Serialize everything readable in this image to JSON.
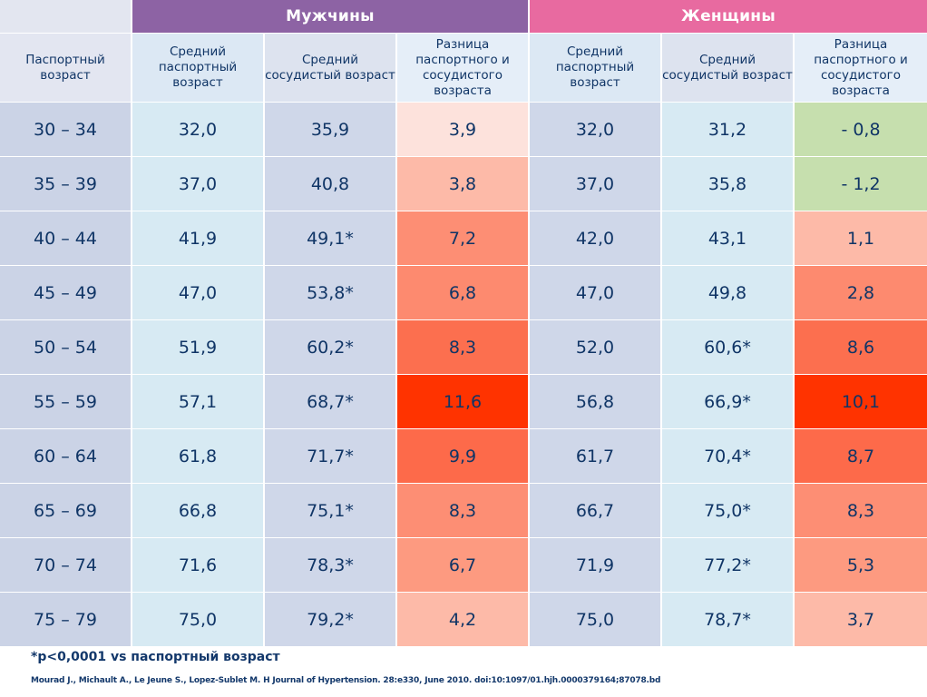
{
  "chart_data": {
    "type": "table",
    "groups": [
      "Мужчины",
      "Женщины"
    ],
    "headers": [
      "Паспортный возраст",
      "Средний паспортный возраст",
      "Средний сосудистый возраст",
      "Разница паспортного и сосудистого возраста",
      "Средний паспортный возраст",
      "Средний сосудистый возраст",
      "Разница паспортного и сосудистого возраста"
    ],
    "rows": [
      [
        "30 – 34",
        "32,0",
        "35,9",
        "3,9",
        "32,0",
        "31,2",
        "- 0,8"
      ],
      [
        "35 – 39",
        "37,0",
        "40,8",
        "3,8",
        "37,0",
        "35,8",
        "- 1,2"
      ],
      [
        "40 – 44",
        "41,9",
        "49,1*",
        "7,2",
        "42,0",
        "43,1",
        "1,1"
      ],
      [
        "45 – 49",
        "47,0",
        "53,8*",
        "6,8",
        "47,0",
        "49,8",
        "2,8"
      ],
      [
        "50 – 54",
        "51,9",
        "60,2*",
        "8,3",
        "52,0",
        "60,6*",
        "8,6"
      ],
      [
        "55 – 59",
        "57,1",
        "68,7*",
        "11,6",
        "56,8",
        "66,9*",
        "10,1"
      ],
      [
        "60 – 64",
        "61,8",
        "71,7*",
        "9,9",
        "61,7",
        "70,4*",
        "8,7"
      ],
      [
        "65 – 69",
        "66,8",
        "75,1*",
        "8,3",
        "66,7",
        "75,0*",
        "8,3"
      ],
      [
        "70 – 74",
        "71,6",
        "78,3*",
        "6,7",
        "71,9",
        "77,2*",
        "5,3"
      ],
      [
        "75 – 79",
        "75,0",
        "79,2*",
        "4,2",
        "75,0",
        "78,7*",
        "3,7"
      ]
    ],
    "diff_colors_men": [
      "#fde2dc",
      "#fdbaa8",
      "#fd8e74",
      "#fd8a6f",
      "#fc6f4f",
      "#ff3300",
      "#fd6a4a",
      "#fd8e74",
      "#fd9a80",
      "#fdbaa8"
    ],
    "diff_colors_women": [
      "#c6dfae",
      "#c6dfae",
      "#fdbaa8",
      "#fd8a6f",
      "#fc6f4f",
      "#ff3300",
      "#fd6a4a",
      "#fd8e74",
      "#fd9a80",
      "#fdbaa8"
    ]
  },
  "footnote": "*p<0,0001 vs паспортный возраст",
  "source": "Mourad J., Michault A., Le Jeune S., Lopez-Sublet M. H Journal of Hypertension. 28:e330, June 2010. doi:10:1097/01.hjh.0000379164;87078.bd"
}
